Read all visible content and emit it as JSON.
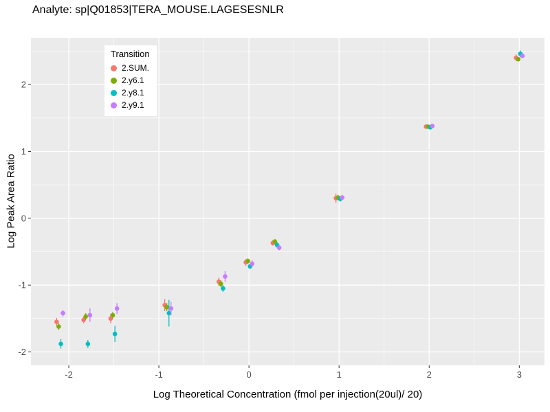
{
  "chart_data": {
    "type": "scatter",
    "title": "Analyte: sp|Q01853|TERA_MOUSE.LAGESESNLR",
    "xlabel": "Log Theoretical Concentration (fmol per injection(20ul)/ 20)",
    "ylabel": "Log Peak Area Ratio",
    "xlim": [
      -2.42,
      3.28
    ],
    "ylim": [
      -2.2,
      2.7
    ],
    "xticks": [
      -2,
      -1,
      0,
      1,
      2,
      3
    ],
    "yticks": [
      -2,
      -1,
      0,
      1,
      2
    ],
    "grid": true,
    "panel_bg": "#EBEBEB",
    "grid_color": "#FFFFFF",
    "tick_color": "#333333",
    "tick_label_color": "#4D4D4D",
    "legend_title": "Transition",
    "legend_position": "inside-top-left",
    "dodge": [
      -0.035,
      -0.012,
      0.012,
      0.035
    ],
    "x": [
      -2.1,
      -1.8,
      -1.5,
      -0.9,
      -0.3,
      0,
      0.3,
      1,
      2,
      3
    ],
    "series": [
      {
        "name": "2.SUM.",
        "color": "#F8766D",
        "y": [
          -1.55,
          -1.52,
          -1.5,
          -1.3,
          -0.95,
          -0.66,
          -0.37,
          0.3,
          1.37,
          2.4
        ],
        "err": [
          0.06,
          0.05,
          0.07,
          0.09,
          0.06,
          0.05,
          0.04,
          0.07,
          0.03,
          0.05
        ]
      },
      {
        "name": "2.y6.1",
        "color": "#7CAE00",
        "y": [
          -1.62,
          -1.47,
          -1.45,
          -1.33,
          -0.98,
          -0.64,
          -0.35,
          0.31,
          1.37,
          2.38
        ],
        "err": [
          0.05,
          0.05,
          0.05,
          0.06,
          0.05,
          0.04,
          0.04,
          0.04,
          0.03,
          0.03
        ]
      },
      {
        "name": "2.y8.1",
        "color": "#00BFC4",
        "y": [
          -1.88,
          -1.88,
          -1.73,
          -1.42,
          -1.05,
          -0.72,
          -0.4,
          0.29,
          1.36,
          2.46
        ],
        "err": [
          0.07,
          0.06,
          0.12,
          0.2,
          0.05,
          0.04,
          0.04,
          0.04,
          0.03,
          0.05
        ]
      },
      {
        "name": "2.y9.1",
        "color": "#C77CFF",
        "y": [
          -1.42,
          -1.45,
          -1.35,
          -1.35,
          -0.87,
          -0.68,
          -0.44,
          0.31,
          1.38,
          2.43
        ],
        "err": [
          0.05,
          0.1,
          0.08,
          0.1,
          0.08,
          0.05,
          0.04,
          0.04,
          0.03,
          0.03
        ]
      }
    ]
  }
}
